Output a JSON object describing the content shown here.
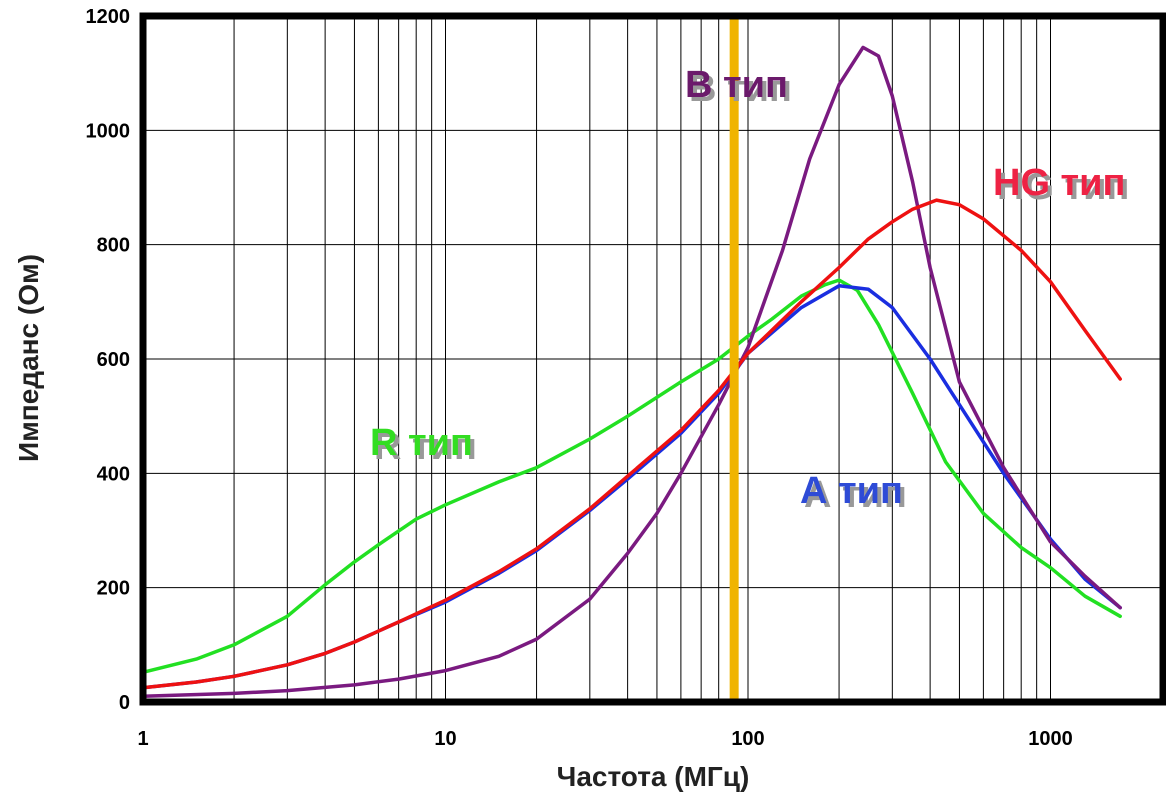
{
  "chart_data": {
    "type": "line",
    "xlabel": "Частота (МГц)",
    "ylabel": "Импеданс (Ом)",
    "x_scale": "log",
    "xlim": [
      1,
      2000
    ],
    "ylim": [
      0,
      1200
    ],
    "x_ticks": [
      1,
      10,
      100,
      1000
    ],
    "x_tick_labels": [
      "1",
      "10",
      "100",
      "1000"
    ],
    "y_ticks": [
      0,
      200,
      400,
      600,
      800,
      1000,
      1200
    ],
    "y_tick_labels": [
      "0",
      "200",
      "400",
      "600",
      "800",
      "1000",
      "1200"
    ],
    "grid": true,
    "marker_line": {
      "x": 90,
      "color": "#f0b400"
    },
    "series": [
      {
        "name": "R тип",
        "color": "#22e022",
        "label_color": "#33dd22",
        "points": [
          [
            1,
            52
          ],
          [
            1.5,
            75
          ],
          [
            2,
            100
          ],
          [
            3,
            150
          ],
          [
            4,
            205
          ],
          [
            5,
            245
          ],
          [
            6,
            275
          ],
          [
            8,
            320
          ],
          [
            10,
            345
          ],
          [
            15,
            385
          ],
          [
            20,
            410
          ],
          [
            30,
            460
          ],
          [
            40,
            500
          ],
          [
            60,
            560
          ],
          [
            80,
            600
          ],
          [
            100,
            640
          ],
          [
            120,
            670
          ],
          [
            150,
            710
          ],
          [
            180,
            730
          ],
          [
            200,
            738
          ],
          [
            230,
            720
          ],
          [
            270,
            660
          ],
          [
            350,
            540
          ],
          [
            450,
            420
          ],
          [
            600,
            330
          ],
          [
            800,
            270
          ],
          [
            1000,
            235
          ],
          [
            1300,
            185
          ],
          [
            1700,
            150
          ]
        ]
      },
      {
        "name": "А тип",
        "color": "#1a2ee0",
        "label_color": "#2e4bd6",
        "points": [
          [
            1,
            25
          ],
          [
            1.5,
            35
          ],
          [
            2,
            45
          ],
          [
            3,
            65
          ],
          [
            4,
            85
          ],
          [
            5,
            105
          ],
          [
            7,
            140
          ],
          [
            10,
            175
          ],
          [
            15,
            225
          ],
          [
            20,
            265
          ],
          [
            30,
            335
          ],
          [
            40,
            390
          ],
          [
            60,
            470
          ],
          [
            80,
            540
          ],
          [
            100,
            610
          ],
          [
            150,
            690
          ],
          [
            200,
            728
          ],
          [
            250,
            722
          ],
          [
            300,
            690
          ],
          [
            400,
            600
          ],
          [
            500,
            520
          ],
          [
            700,
            400
          ],
          [
            1000,
            285
          ],
          [
            1300,
            215
          ],
          [
            1700,
            165
          ]
        ]
      },
      {
        "name": "В тип",
        "color": "#7a1a80",
        "label_color": "#6b1a6b",
        "points": [
          [
            1,
            10
          ],
          [
            2,
            15
          ],
          [
            3,
            20
          ],
          [
            5,
            30
          ],
          [
            7,
            40
          ],
          [
            10,
            55
          ],
          [
            15,
            80
          ],
          [
            20,
            110
          ],
          [
            30,
            180
          ],
          [
            40,
            260
          ],
          [
            50,
            330
          ],
          [
            60,
            400
          ],
          [
            80,
            520
          ],
          [
            100,
            620
          ],
          [
            130,
            790
          ],
          [
            160,
            950
          ],
          [
            200,
            1080
          ],
          [
            240,
            1145
          ],
          [
            270,
            1130
          ],
          [
            300,
            1060
          ],
          [
            350,
            910
          ],
          [
            400,
            760
          ],
          [
            500,
            560
          ],
          [
            700,
            410
          ],
          [
            1000,
            280
          ],
          [
            1300,
            220
          ],
          [
            1700,
            165
          ]
        ]
      },
      {
        "name": "HG тип",
        "color": "#ee1111",
        "label_color": "#ee2244",
        "points": [
          [
            1,
            25
          ],
          [
            1.5,
            35
          ],
          [
            2,
            45
          ],
          [
            3,
            65
          ],
          [
            4,
            85
          ],
          [
            5,
            105
          ],
          [
            7,
            140
          ],
          [
            10,
            178
          ],
          [
            15,
            228
          ],
          [
            20,
            268
          ],
          [
            30,
            338
          ],
          [
            40,
            395
          ],
          [
            60,
            475
          ],
          [
            80,
            545
          ],
          [
            100,
            610
          ],
          [
            150,
            700
          ],
          [
            200,
            760
          ],
          [
            250,
            810
          ],
          [
            300,
            840
          ],
          [
            350,
            862
          ],
          [
            420,
            878
          ],
          [
            500,
            870
          ],
          [
            600,
            845
          ],
          [
            800,
            790
          ],
          [
            1000,
            735
          ],
          [
            1300,
            650
          ],
          [
            1700,
            565
          ]
        ]
      }
    ]
  }
}
